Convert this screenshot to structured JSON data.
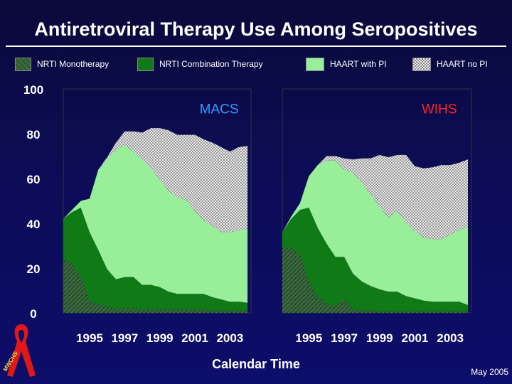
{
  "title": "Antiretroviral Therapy Use Among Seropositives",
  "footer": {
    "xlabel": "Calendar Time",
    "date": "May 2005"
  },
  "colors": {
    "background": "#0c0c56",
    "nrti_mono": "#2f5a2f",
    "nrti_combo": "#0f7a16",
    "haart_pi": "#99ee99",
    "haart_no_pi": "#b8b8b8",
    "macs_label": "#3399ff",
    "wihs_label": "#ff2222",
    "ribbon": "#e01818"
  },
  "logo": {
    "text": "MWCHS",
    "icon": "red-ribbon-icon"
  },
  "chart_data": [
    {
      "type": "area",
      "label": "MACS",
      "y_ticks": [
        0,
        20,
        40,
        60,
        80,
        100
      ],
      "x_ticks": [
        "1995",
        "1997",
        "1999",
        "2001",
        "2003"
      ],
      "ylim": [
        0,
        100
      ],
      "xlim": [
        1994.0,
        2004.7
      ],
      "stacked": true,
      "legend": "top",
      "x": [
        1994.0,
        1994.5,
        1995.0,
        1995.5,
        1996.0,
        1996.5,
        1997.0,
        1997.5,
        1998.0,
        1998.5,
        1999.0,
        1999.5,
        2000.0,
        2000.5,
        2001.0,
        2001.5,
        2002.0,
        2002.5,
        2003.0,
        2003.5,
        2004.0,
        2004.5
      ],
      "series": [
        {
          "name": "NRTI Monotherapy",
          "values": [
            24,
            22,
            16,
            5,
            4,
            2.5,
            2,
            2,
            2,
            1.5,
            1.5,
            1.5,
            1.5,
            1.5,
            1.5,
            1.5,
            1.5,
            1,
            1,
            1,
            1,
            1
          ]
        },
        {
          "name": "NRTI Combination Therapy",
          "values": [
            18,
            23,
            31,
            31,
            24,
            17,
            13,
            14,
            14,
            11,
            11,
            10,
            8,
            7,
            7,
            7,
            7,
            6,
            5,
            4,
            4,
            3.5
          ]
        },
        {
          "name": "HAART with PI",
          "values": [
            0,
            1,
            3,
            15,
            36,
            49,
            58,
            59,
            56,
            56,
            52,
            48,
            45,
            43,
            42,
            37,
            33,
            32,
            30,
            31,
            32,
            33
          ]
        },
        {
          "name": "HAART no PI",
          "values": [
            0,
            0,
            0,
            0,
            0,
            1,
            3,
            6,
            9,
            12,
            18,
            23,
            27,
            28,
            29,
            34,
            36,
            37,
            38,
            36,
            37,
            37
          ]
        }
      ]
    },
    {
      "type": "area",
      "label": "WIHS",
      "y_ticks": [
        0,
        20,
        40,
        60,
        80,
        100
      ],
      "x_ticks": [
        "1995",
        "1997",
        "1999",
        "2001",
        "2003"
      ],
      "ylim": [
        0,
        100
      ],
      "xlim": [
        1994.0,
        2004.7
      ],
      "stacked": true,
      "legend": "top",
      "x": [
        1994.0,
        1994.5,
        1995.0,
        1995.5,
        1996.0,
        1996.5,
        1997.0,
        1997.5,
        1998.0,
        1998.5,
        1999.0,
        1999.5,
        2000.0,
        2000.5,
        2001.0,
        2001.5,
        2002.0,
        2002.5,
        2003.0,
        2003.5,
        2004.0,
        2004.5
      ],
      "series": [
        {
          "name": "NRTI Monotherapy",
          "values": [
            29,
            29,
            26,
            14,
            7,
            4,
            3,
            6,
            1.5,
            1,
            1,
            0.5,
            0.5,
            0.5,
            0.5,
            0.5,
            0.5,
            0.5,
            0.5,
            0.5,
            0.5,
            0.5
          ]
        },
        {
          "name": "NRTI Combination Therapy",
          "values": [
            7,
            13,
            20,
            33,
            31,
            27,
            22,
            19,
            16,
            13,
            11,
            10,
            9,
            9,
            7,
            6,
            5,
            4.5,
            4.5,
            4.5,
            4.5,
            3
          ]
        },
        {
          "name": "HAART with PI",
          "values": [
            0,
            1,
            3,
            14,
            28,
            37,
            43,
            39,
            45,
            44,
            41,
            37,
            33,
            36,
            33,
            30,
            28,
            28,
            28,
            30,
            32,
            35
          ]
        },
        {
          "name": "HAART no PI",
          "values": [
            0,
            0,
            0,
            0,
            0,
            2,
            2,
            5,
            6,
            11,
            16,
            23,
            27,
            25,
            30,
            29,
            31,
            32,
            33,
            31,
            30,
            30
          ]
        }
      ]
    }
  ]
}
